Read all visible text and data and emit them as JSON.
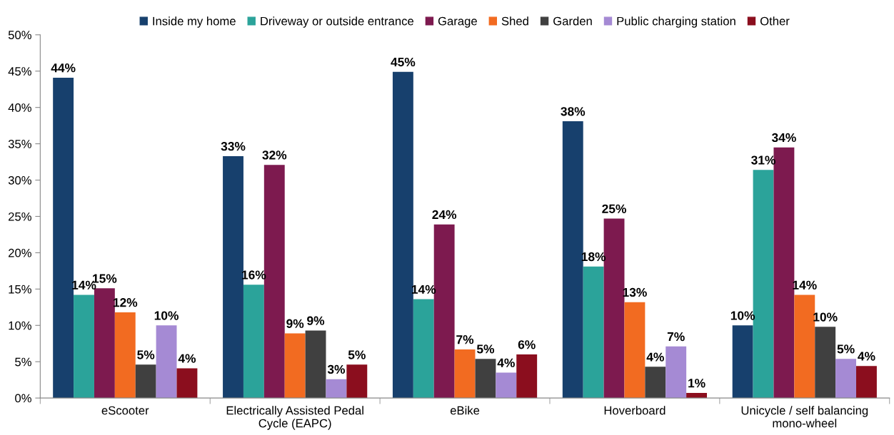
{
  "chart_data": {
    "type": "bar",
    "categories": [
      "eScooter",
      "Electrically Assisted Pedal\nCycle (EAPC)",
      "eBike",
      "Hoverboard",
      "Unicycle / self balancing\nmono-wheel"
    ],
    "series": [
      {
        "name": "Inside my home",
        "color": "#17406d",
        "values": [
          44.1,
          33.3,
          44.9,
          38.1,
          10.0
        ],
        "value_labels": [
          "44%",
          "33%",
          "45%",
          "38%",
          "10%"
        ]
      },
      {
        "name": "Driveway or outside entrance",
        "color": "#2ba39a",
        "values": [
          14.2,
          15.6,
          13.6,
          18.1,
          31.4
        ],
        "value_labels": [
          "14%",
          "16%",
          "14%",
          "18%",
          "31%"
        ]
      },
      {
        "name": "Garage",
        "color": "#7d1a4f",
        "values": [
          15.1,
          32.1,
          23.9,
          24.7,
          34.5
        ],
        "value_labels": [
          "15%",
          "32%",
          "24%",
          "25%",
          "34%"
        ]
      },
      {
        "name": "Shed",
        "color": "#f26b21",
        "values": [
          11.8,
          8.9,
          6.7,
          13.2,
          14.2
        ],
        "value_labels": [
          "12%",
          "9%",
          "7%",
          "13%",
          "14%"
        ]
      },
      {
        "name": "Garden",
        "color": "#404040",
        "values": [
          4.6,
          9.3,
          5.4,
          4.3,
          9.8
        ],
        "value_labels": [
          "5%",
          "9%",
          "5%",
          "4%",
          "10%"
        ]
      },
      {
        "name": "Public charging station",
        "color": "#a58ad4",
        "values": [
          10.0,
          2.6,
          3.5,
          7.1,
          5.4
        ],
        "value_labels": [
          "10%",
          "3%",
          "4%",
          "7%",
          "5%"
        ]
      },
      {
        "name": "Other",
        "color": "#8b0e1e",
        "values": [
          4.1,
          4.6,
          6.0,
          0.7,
          4.4
        ],
        "value_labels": [
          "4%",
          "5%",
          "6%",
          "1%",
          "4%"
        ]
      }
    ],
    "ylim": [
      0,
      50
    ],
    "yticks": [
      {
        "value": 0,
        "label": "0%"
      },
      {
        "value": 5,
        "label": "5%"
      },
      {
        "value": 10,
        "label": "10%"
      },
      {
        "value": 15,
        "label": "15%"
      },
      {
        "value": 20,
        "label": "20%"
      },
      {
        "value": 25,
        "label": "25%"
      },
      {
        "value": 30,
        "label": "30%"
      },
      {
        "value": 35,
        "label": "35%"
      },
      {
        "value": 40,
        "label": "40%"
      },
      {
        "value": 45,
        "label": "45%"
      },
      {
        "value": 50,
        "label": "50%"
      }
    ],
    "grid": false,
    "legend": "top"
  }
}
